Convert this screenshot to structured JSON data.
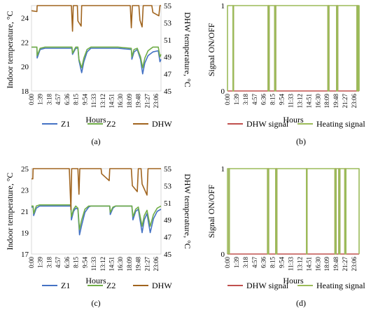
{
  "chart_data": [
    {
      "panel": "(a)",
      "type": "line",
      "ylabel": "Indoor temperature, °C",
      "y2label": "DHW temperature, °C",
      "xlabel": "Hours",
      "ylim": [
        18,
        25
      ],
      "yticks": [
        18,
        20,
        22,
        24
      ],
      "y2lim": [
        45,
        55
      ],
      "y2ticks": [
        45,
        47,
        49,
        51,
        53,
        55
      ],
      "xlim": [
        0,
        24
      ],
      "x_tick_labels": [
        "0:00",
        "1:39",
        "3:18",
        "4:57",
        "6:36",
        "8:15",
        "9:54",
        "11:33",
        "13:12",
        "14:51",
        "16:30",
        "18:09",
        "19:48",
        "21:27",
        "23:06"
      ],
      "legend": [
        "Z1",
        "Z2",
        "DHW"
      ],
      "series": [
        {
          "name": "Z1",
          "axis": "left",
          "color": "#4472C4",
          "points": [
            [
              0,
              21.6
            ],
            [
              1,
              21.6
            ],
            [
              1.05,
              20.7
            ],
            [
              1.6,
              21.4
            ],
            [
              2.5,
              21.5
            ],
            [
              5,
              21.5
            ],
            [
              7.5,
              21.5
            ],
            [
              7.6,
              21.0
            ],
            [
              8.2,
              21.5
            ],
            [
              8.6,
              21.5
            ],
            [
              8.8,
              20.5
            ],
            [
              9.3,
              19.5
            ],
            [
              9.7,
              20.4
            ],
            [
              10.3,
              21.2
            ],
            [
              11,
              21.5
            ],
            [
              16,
              21.5
            ],
            [
              18.5,
              21.4
            ],
            [
              18.6,
              20.6
            ],
            [
              19.0,
              21.2
            ],
            [
              19.6,
              21.4
            ],
            [
              20.2,
              20.6
            ],
            [
              20.6,
              19.4
            ],
            [
              21.0,
              20.3
            ],
            [
              21.6,
              20.9
            ],
            [
              22.5,
              21.2
            ],
            [
              23.5,
              21.3
            ],
            [
              23.8,
              20.4
            ],
            [
              24,
              20.6
            ]
          ]
        },
        {
          "name": "Z2",
          "axis": "left",
          "color": "#70AD47",
          "points": [
            [
              0,
              21.6
            ],
            [
              1,
              21.6
            ],
            [
              1.05,
              20.9
            ],
            [
              1.6,
              21.5
            ],
            [
              2.5,
              21.6
            ],
            [
              5,
              21.6
            ],
            [
              7.5,
              21.6
            ],
            [
              7.6,
              21.1
            ],
            [
              8.2,
              21.6
            ],
            [
              8.6,
              21.6
            ],
            [
              8.8,
              20.6
            ],
            [
              9.3,
              19.9
            ],
            [
              9.7,
              20.7
            ],
            [
              10.3,
              21.4
            ],
            [
              11,
              21.6
            ],
            [
              16,
              21.6
            ],
            [
              18.5,
              21.5
            ],
            [
              18.6,
              20.8
            ],
            [
              19.0,
              21.4
            ],
            [
              19.6,
              21.5
            ],
            [
              20.2,
              20.8
            ],
            [
              20.6,
              19.9
            ],
            [
              21.0,
              20.7
            ],
            [
              21.6,
              21.3
            ],
            [
              22.5,
              21.6
            ],
            [
              23.5,
              21.6
            ],
            [
              23.8,
              20.8
            ],
            [
              24,
              21.0
            ]
          ]
        },
        {
          "name": "DHW",
          "axis": "right",
          "color": "#A0641E",
          "points": [
            [
              0,
              54.4
            ],
            [
              1.0,
              54.3
            ],
            [
              1.05,
              55
            ],
            [
              7.4,
              55
            ],
            [
              7.6,
              52.0
            ],
            [
              7.75,
              55
            ],
            [
              8.5,
              55
            ],
            [
              8.6,
              53.2
            ],
            [
              9.2,
              52.6
            ],
            [
              9.3,
              55
            ],
            [
              18.3,
              55
            ],
            [
              18.5,
              52.4
            ],
            [
              18.7,
              55
            ],
            [
              19.9,
              55
            ],
            [
              20.1,
              53.3
            ],
            [
              20.5,
              52.5
            ],
            [
              20.7,
              55
            ],
            [
              22.3,
              55
            ],
            [
              22.5,
              54.2
            ],
            [
              23.6,
              53.8
            ],
            [
              23.8,
              55
            ],
            [
              24,
              55
            ]
          ]
        }
      ]
    },
    {
      "panel": "(b)",
      "type": "line",
      "ylabel": "Signal ON/OFF",
      "xlabel": "Hours",
      "ylim": [
        0,
        1
      ],
      "yticks": [
        0,
        1
      ],
      "xlim": [
        0,
        24
      ],
      "x_tick_labels": [
        "0:00",
        "1:39",
        "3:18",
        "4:57",
        "6:36",
        "8:15",
        "9:54",
        "11:33",
        "13:12",
        "14:51",
        "16:30",
        "18:09",
        "19:48",
        "21:27",
        "23:06"
      ],
      "legend": [
        "DHW signal",
        "Heating signal"
      ],
      "series": [
        {
          "name": "DHW signal",
          "color": "#C0504D",
          "on_intervals": [
            [
              1.0,
              1.1
            ],
            [
              7.4,
              7.6
            ],
            [
              8.6,
              8.8
            ],
            [
              18.3,
              18.5
            ],
            [
              19.9,
              20.1
            ],
            [
              23.6,
              23.8
            ]
          ]
        },
        {
          "name": "Heating signal",
          "color": "#9BBB59",
          "on_intervals": [
            [
              0,
              1.0
            ],
            [
              1.1,
              7.4
            ],
            [
              7.6,
              8.6
            ],
            [
              8.8,
              18.3
            ],
            [
              18.5,
              19.9
            ],
            [
              20.1,
              23.6
            ],
            [
              23.8,
              24
            ]
          ]
        }
      ]
    },
    {
      "panel": "(c)",
      "type": "line",
      "ylabel": "Indoor temperature, °C",
      "y2label": "DHW temperature, °C",
      "xlabel": "Hours",
      "ylim": [
        17,
        25
      ],
      "yticks": [
        17,
        19,
        21,
        23,
        25
      ],
      "y2lim": [
        45,
        55
      ],
      "y2ticks": [
        45,
        47,
        49,
        51,
        53,
        55
      ],
      "xlim": [
        0,
        24
      ],
      "x_tick_labels": [
        "0:00",
        "1:39",
        "3:18",
        "4:57",
        "6:36",
        "8:15",
        "9:54",
        "11:33",
        "13:12",
        "14:51",
        "16:30",
        "18:09",
        "19:48",
        "21:27",
        "23:06"
      ],
      "legend": [
        "Z1",
        "Z2",
        "DHW"
      ],
      "series": [
        {
          "name": "Z1",
          "axis": "left",
          "color": "#4472C4",
          "points": [
            [
              0,
              21.4
            ],
            [
              0.3,
              21.4
            ],
            [
              0.4,
              20.6
            ],
            [
              0.9,
              21.3
            ],
            [
              1.5,
              21.5
            ],
            [
              7.3,
              21.5
            ],
            [
              7.4,
              20.2
            ],
            [
              7.8,
              21.0
            ],
            [
              8.2,
              21.3
            ],
            [
              8.6,
              21.2
            ],
            [
              8.9,
              18.8
            ],
            [
              9.3,
              19.7
            ],
            [
              9.9,
              20.9
            ],
            [
              10.6,
              21.4
            ],
            [
              11,
              21.5
            ],
            [
              14.5,
              21.5
            ],
            [
              14.6,
              20.7
            ],
            [
              15.1,
              21.3
            ],
            [
              15.6,
              21.5
            ],
            [
              18.6,
              21.5
            ],
            [
              18.8,
              20.2
            ],
            [
              19.3,
              21.0
            ],
            [
              19.8,
              21.2
            ],
            [
              20.5,
              19.0
            ],
            [
              20.9,
              20.2
            ],
            [
              21.4,
              20.8
            ],
            [
              22.0,
              19.0
            ],
            [
              22.6,
              20.3
            ],
            [
              23.3,
              21.0
            ],
            [
              24,
              21.2
            ]
          ]
        },
        {
          "name": "Z2",
          "axis": "left",
          "color": "#70AD47",
          "points": [
            [
              0,
              21.5
            ],
            [
              0.3,
              21.5
            ],
            [
              0.4,
              20.8
            ],
            [
              0.9,
              21.5
            ],
            [
              1.5,
              21.6
            ],
            [
              7.3,
              21.6
            ],
            [
              7.4,
              20.5
            ],
            [
              7.8,
              21.2
            ],
            [
              8.2,
              21.5
            ],
            [
              8.6,
              21.3
            ],
            [
              8.9,
              19.3
            ],
            [
              9.3,
              20.2
            ],
            [
              9.9,
              21.2
            ],
            [
              10.6,
              21.5
            ],
            [
              11,
              21.5
            ],
            [
              14.5,
              21.5
            ],
            [
              14.6,
              20.9
            ],
            [
              15.1,
              21.4
            ],
            [
              15.6,
              21.5
            ],
            [
              18.6,
              21.5
            ],
            [
              18.8,
              20.5
            ],
            [
              19.3,
              21.2
            ],
            [
              19.8,
              21.4
            ],
            [
              20.5,
              19.6
            ],
            [
              20.9,
              20.6
            ],
            [
              21.4,
              21.1
            ],
            [
              22.0,
              19.6
            ],
            [
              22.6,
              20.7
            ],
            [
              23.3,
              21.3
            ],
            [
              24,
              21.5
            ]
          ]
        },
        {
          "name": "DHW",
          "axis": "right",
          "color": "#A0641E",
          "points": [
            [
              0,
              53.8
            ],
            [
              0.25,
              53.8
            ],
            [
              0.3,
              55
            ],
            [
              7.0,
              55
            ],
            [
              7.3,
              50.2
            ],
            [
              7.45,
              55
            ],
            [
              8.6,
              55
            ],
            [
              8.8,
              52.0
            ],
            [
              8.95,
              55
            ],
            [
              12.9,
              55
            ],
            [
              13.0,
              54.4
            ],
            [
              14.4,
              53.6
            ],
            [
              14.5,
              55
            ],
            [
              18.5,
              55
            ],
            [
              18.7,
              53.0
            ],
            [
              19.6,
              52.3
            ],
            [
              19.8,
              55
            ],
            [
              20.3,
              55
            ],
            [
              20.5,
              53.2
            ],
            [
              21.4,
              51.9
            ],
            [
              21.6,
              55
            ],
            [
              24,
              55
            ]
          ]
        }
      ]
    },
    {
      "panel": "(d)",
      "type": "line",
      "ylabel": "Signal ON/OFF",
      "xlabel": "Hours",
      "ylim": [
        0,
        1
      ],
      "yticks": [
        0,
        1
      ],
      "xlim": [
        0,
        24
      ],
      "x_tick_labels": [
        "0:00",
        "1:39",
        "3:18",
        "4:57",
        "6:36",
        "8:15",
        "9:54",
        "11:33",
        "13:12",
        "14:51",
        "16:30",
        "18:09",
        "19:48",
        "21:27",
        "23:06"
      ],
      "legend": [
        "DHW signal",
        "Heating signal"
      ],
      "series": [
        {
          "name": "DHW signal",
          "color": "#C0504D",
          "on_intervals": [
            [
              0.25,
              0.35
            ],
            [
              7.3,
              7.5
            ],
            [
              8.8,
              9.0
            ],
            [
              14.4,
              14.5
            ],
            [
              19.6,
              19.8
            ],
            [
              20.3,
              20.5
            ],
            [
              21.4,
              21.6
            ]
          ]
        },
        {
          "name": "Heating signal",
          "color": "#9BBB59",
          "on_intervals": [
            [
              0,
              0.25
            ],
            [
              0.35,
              7.3
            ],
            [
              7.5,
              8.8
            ],
            [
              9.0,
              14.4
            ],
            [
              14.5,
              19.6
            ],
            [
              19.8,
              20.3
            ],
            [
              20.5,
              21.4
            ],
            [
              21.6,
              24
            ]
          ]
        }
      ]
    }
  ]
}
